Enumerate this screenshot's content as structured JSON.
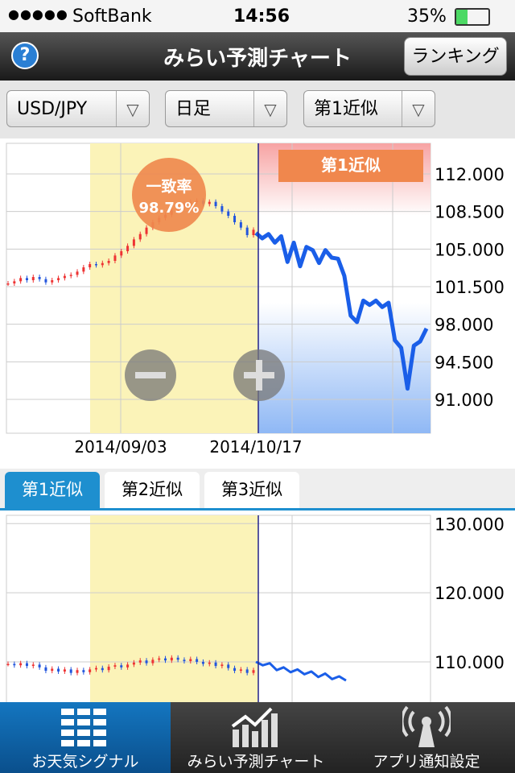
{
  "status_bar": {
    "carrier": "SoftBank",
    "time": "14:56",
    "battery": "35%"
  },
  "nav_bar": {
    "title": "みらい予測チャート",
    "button": "ランキング"
  },
  "selectors": [
    "USD/JPY",
    "日足",
    "第1近似"
  ],
  "main_chart": {
    "badge_title": "一致率",
    "badge_value": "98.79%",
    "forecast_label": "第1近似",
    "ylim": [
      87.85,
      114.85
    ],
    "yticks": [
      {
        "value": 112,
        "label": "112.000"
      },
      {
        "value": 108.5,
        "label": "108.500"
      },
      {
        "value": 105,
        "label": "105.000"
      },
      {
        "value": 101.5,
        "label": "101.500"
      },
      {
        "value": 98,
        "label": "98.000"
      },
      {
        "value": 94.5,
        "label": "94.500"
      },
      {
        "value": 91,
        "label": "91.000"
      }
    ],
    "dates": [
      "2014/09/03",
      "2014/10/17"
    ],
    "history": [
      101.8,
      102.0,
      102.3,
      102.1,
      102.4,
      102.2,
      101.9,
      102.1,
      102.3,
      102.5,
      102.6,
      102.9,
      103.3,
      103.6,
      103.5,
      103.7,
      103.9,
      104.4,
      104.8,
      105.3,
      105.9,
      106.4,
      107.0,
      107.5,
      107.9,
      108.2,
      108.6,
      108.9,
      109.2,
      109.4,
      109.5,
      109.2,
      109.4,
      109.0,
      108.5,
      108.1,
      107.5,
      107.0,
      106.3,
      106.8
    ],
    "forecast": [
      106.5,
      106.0,
      106.4,
      105.6,
      106.2,
      103.8,
      105.6,
      103.4,
      105.2,
      104.9,
      103.7,
      104.9,
      104.2,
      104.1,
      102.5,
      98.8,
      98.2,
      100.2,
      99.8,
      100.2,
      99.6,
      100.0,
      96.5,
      95.8,
      92.0,
      96.0,
      96.4,
      97.6
    ]
  },
  "tabs": [
    "第1近似",
    "第2近似",
    "第3近似"
  ],
  "sub_chart": {
    "ylim": [
      104.4,
      131.2
    ],
    "yticks": [
      {
        "value": 130,
        "label": "130.000"
      },
      {
        "value": 120,
        "label": "120.000"
      },
      {
        "value": 110,
        "label": "110.000"
      }
    ],
    "history": [
      109.7,
      109.5,
      109.8,
      109.4,
      109.6,
      109.2,
      108.7,
      109.0,
      108.6,
      108.9,
      108.4,
      108.8,
      108.5,
      108.9,
      109.1,
      108.8,
      109.3,
      109.5,
      109.2,
      109.6,
      109.9,
      110.2,
      109.8,
      110.3,
      110.5,
      110.2,
      110.6,
      110.3,
      110.1,
      110.4,
      110.0,
      109.7,
      109.9,
      109.4,
      109.6,
      109.1,
      108.7,
      108.9,
      108.4,
      108.8
    ],
    "forecast": [
      110.0,
      109.5,
      109.8,
      108.8,
      109.2,
      108.5,
      108.9,
      108.2,
      108.6,
      107.8,
      108.3,
      107.5,
      107.9,
      107.3
    ]
  },
  "tab_bar": [
    "お天気シグナル",
    "みらい予測チャート",
    "アプリ通知設定"
  ]
}
